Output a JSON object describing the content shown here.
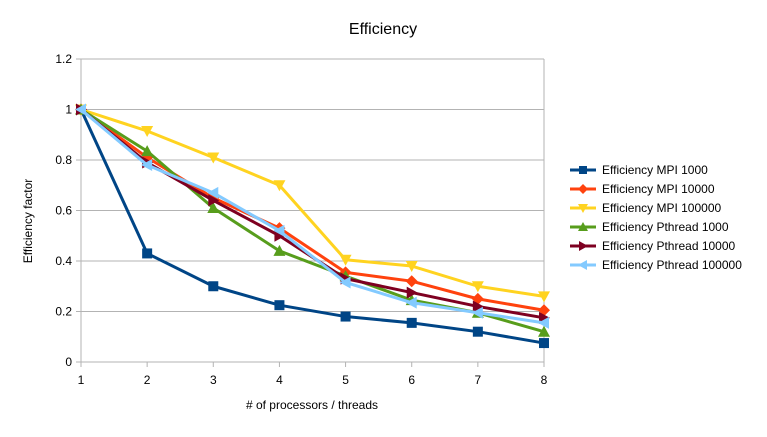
{
  "chart_data": {
    "type": "line",
    "title": "Efficiency",
    "xlabel": "# of processors / threads",
    "ylabel": "Efficiency factor",
    "x": [
      1,
      2,
      3,
      4,
      5,
      6,
      7,
      8
    ],
    "xlim": [
      1,
      8
    ],
    "ylim": [
      0,
      1.2
    ],
    "xticks": [
      "1",
      "2",
      "3",
      "4",
      "5",
      "6",
      "7",
      "8"
    ],
    "yticks": [
      "0",
      "0.2",
      "0.4",
      "0.6",
      "0.8",
      "1",
      "1.2"
    ],
    "ytick_values": [
      0,
      0.2,
      0.4,
      0.6,
      0.8,
      1,
      1.2
    ],
    "grid": "horizontal",
    "legend_position": "right",
    "series": [
      {
        "name": "Efficiency MPI 1000",
        "color": "#004586",
        "marker": "square",
        "values": [
          1,
          0.43,
          0.3,
          0.225,
          0.18,
          0.155,
          0.12,
          0.075
        ]
      },
      {
        "name": "Efficiency MPI 10000",
        "color": "#ff420e",
        "marker": "diamond",
        "values": [
          1,
          0.81,
          0.65,
          0.53,
          0.355,
          0.32,
          0.25,
          0.205
        ]
      },
      {
        "name": "Efficiency MPI 100000",
        "color": "#ffd320",
        "marker": "triangle-down",
        "values": [
          1,
          0.915,
          0.81,
          0.7,
          0.405,
          0.38,
          0.3,
          0.26
        ]
      },
      {
        "name": "Efficiency Pthread 1000",
        "color": "#579d1c",
        "marker": "triangle-up",
        "values": [
          1,
          0.835,
          0.61,
          0.44,
          0.34,
          0.245,
          0.195,
          0.12
        ]
      },
      {
        "name": "Efficiency Pthread 10000",
        "color": "#7e0021",
        "marker": "triangle-right",
        "values": [
          1,
          0.79,
          0.64,
          0.5,
          0.33,
          0.275,
          0.22,
          0.175
        ]
      },
      {
        "name": "Efficiency Pthread 100000",
        "color": "#83caff",
        "marker": "triangle-left",
        "values": [
          1,
          0.78,
          0.67,
          0.52,
          0.315,
          0.235,
          0.195,
          0.155
        ]
      }
    ]
  }
}
